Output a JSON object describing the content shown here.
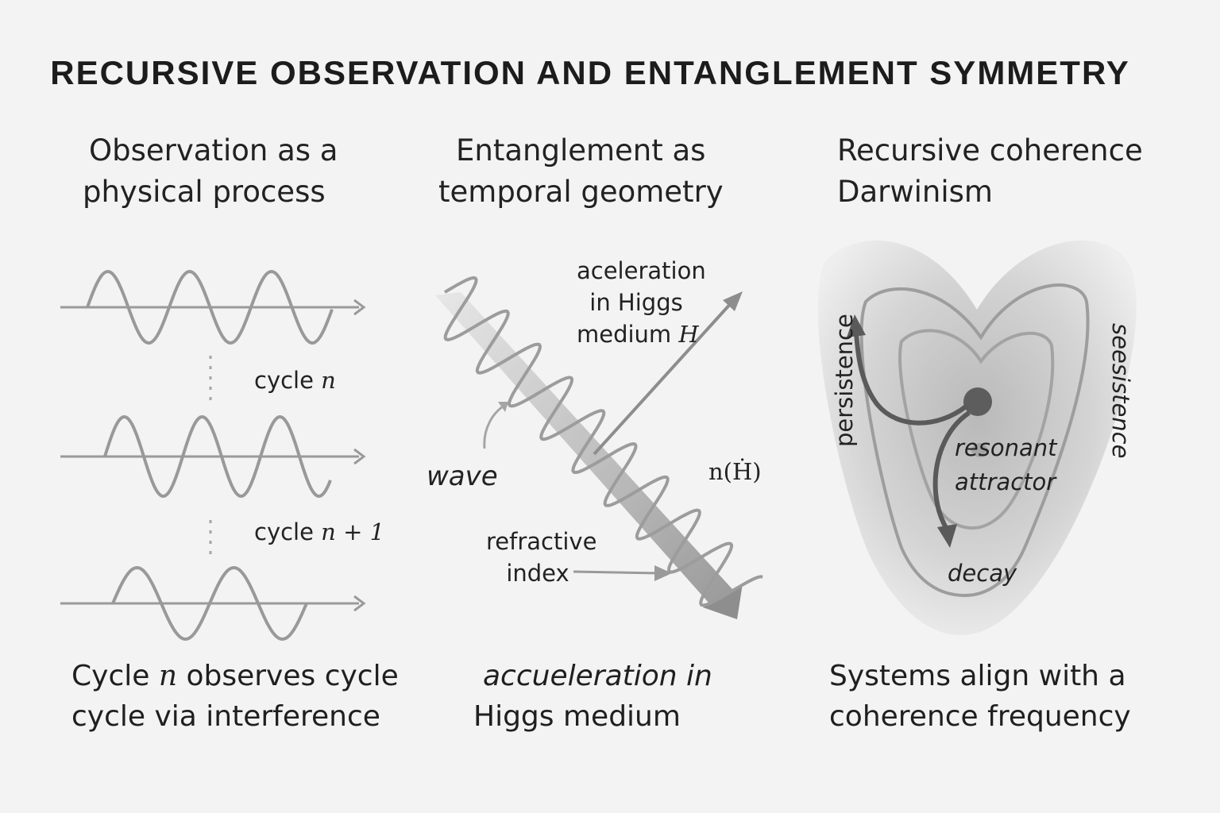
{
  "title": "RECURSIVE OBSERVATION AND ENTANGLEMENT SYMMETRY",
  "panels": [
    {
      "heading_line1": "Observation as a",
      "heading_line2": "physical process",
      "labels": {
        "cycle_a_text": "cycle ",
        "cycle_a_math": "n",
        "cycle_b_text": "cycle ",
        "cycle_b_math": "n + 1"
      },
      "caption_line1_a": "Cycle ",
      "caption_line1_math": "n",
      "caption_line1_b": " observes cycle",
      "caption_line2": "cycle via interference"
    },
    {
      "heading_line1": "Entanglement as",
      "heading_line2": "temporal geometry",
      "labels": {
        "accel_line1": "aceleration",
        "accel_line2": "in Higgs",
        "accel_line3_text": "medium ",
        "accel_line3_math": "H",
        "wave": "wave",
        "n_label": "n(Ḣ)",
        "refr_line1": "refractive",
        "refr_line2": "index"
      },
      "caption_line1": "accueleration in",
      "caption_line2": "Higgs medium"
    },
    {
      "heading_line1": "Recursive coherence",
      "heading_line2": "Darwinism",
      "labels": {
        "persistence": "persistence",
        "seesistence": "seesistence",
        "resonant": "resonant",
        "attractor": "attractor",
        "decay": "decay"
      },
      "caption_line1": "Systems align with a",
      "caption_line2": "coherence frequency"
    }
  ]
}
